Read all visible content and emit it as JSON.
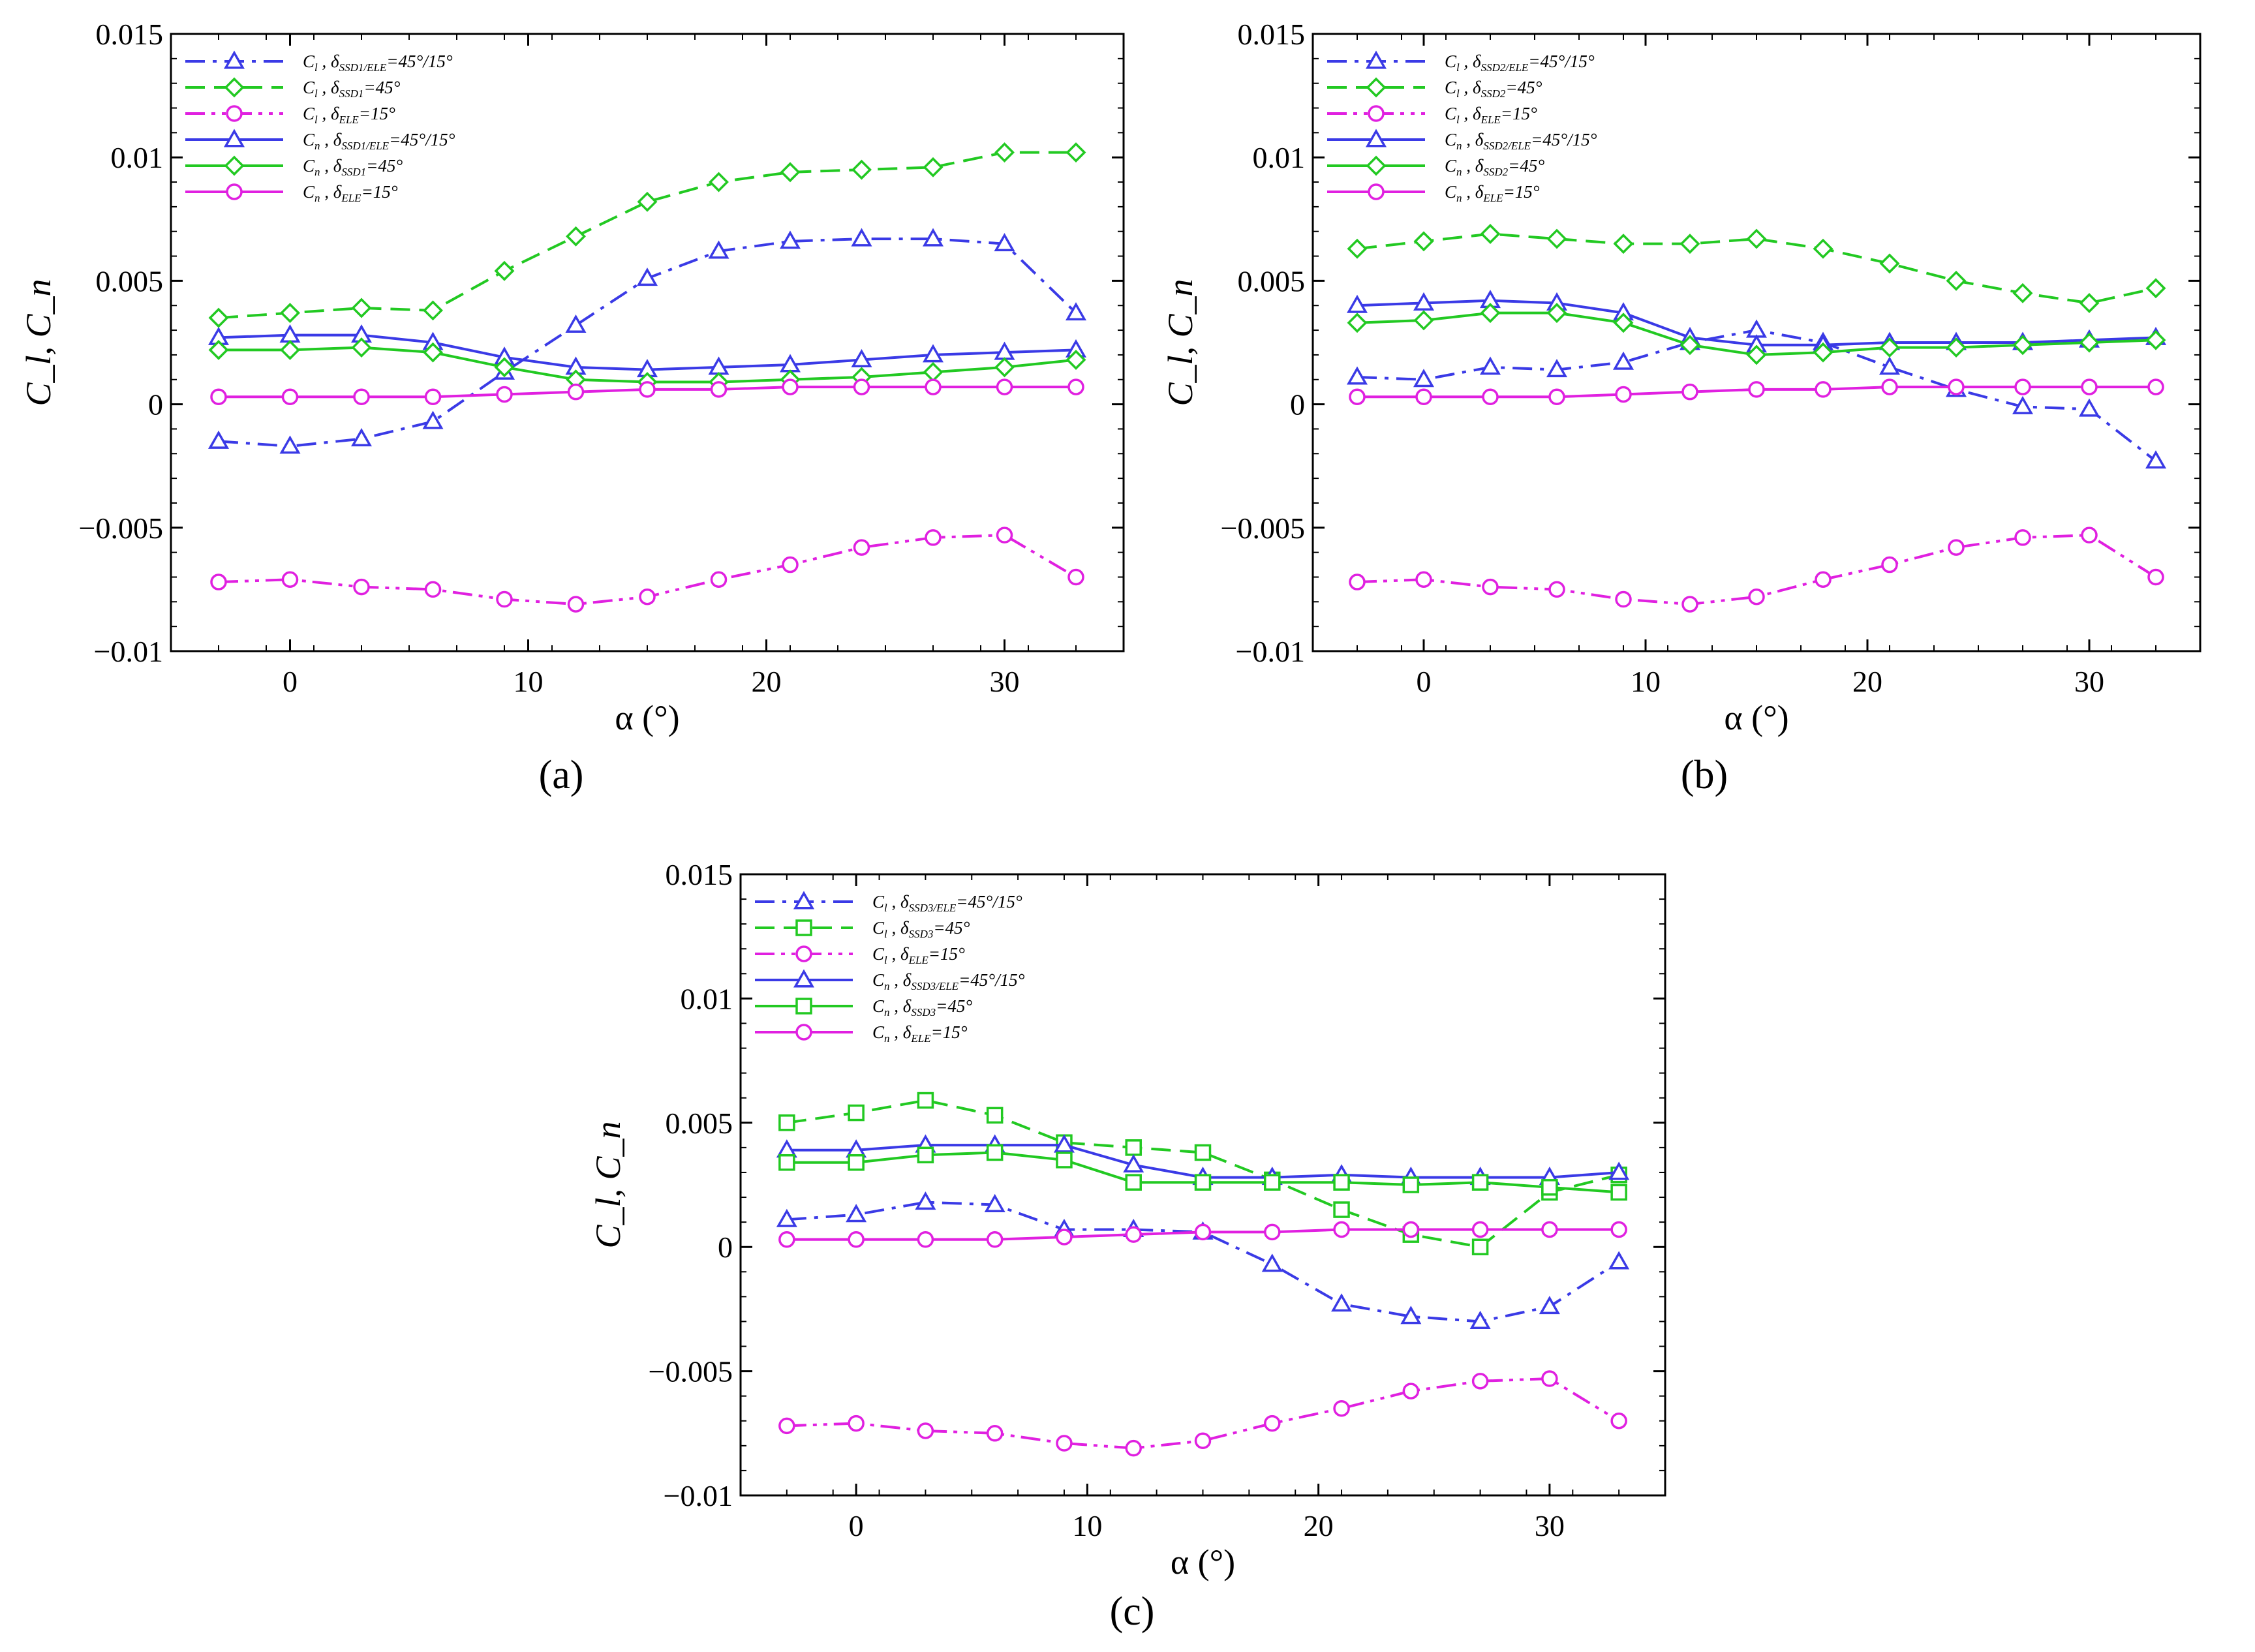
{
  "chart_data": [
    {
      "type": "line",
      "panel_label": "(a)",
      "subfigure": "a",
      "title": "",
      "xlabel": "α (°)",
      "ylabel": "C_l, C_n",
      "xlim": [
        -5,
        35
      ],
      "ylim": [
        -0.01,
        0.015
      ],
      "xticks": [
        0,
        10,
        20,
        30
      ],
      "xtick_labels": [
        "0",
        "10",
        "20",
        "30"
      ],
      "yticks": [
        -0.01,
        -0.005,
        0,
        0.005,
        0.01,
        0.015
      ],
      "ytick_labels": [
        "−0.01",
        "−0.005",
        "0",
        "0.005",
        "0.01",
        "0.015"
      ],
      "grid": false,
      "legend_position": "top-left",
      "x": [
        -3,
        0,
        3,
        6,
        9,
        12,
        15,
        18,
        21,
        24,
        27,
        30,
        33
      ],
      "series": [
        {
          "name": "C_l , δ_SSD1/ELE=45°/15°",
          "coef": "C",
          "coef_sub": "l",
          "sym": "δ",
          "sub": "SSD1/ELE",
          "eq": "=45°/15°",
          "color": "#3a3ae6",
          "dash": "dashdot",
          "marker": "triangle",
          "values": [
            -0.0015,
            -0.0017,
            -0.0014,
            -0.0007,
            0.0013,
            0.0032,
            0.0051,
            0.0062,
            0.0066,
            0.0067,
            0.0067,
            0.0065,
            0.0037
          ]
        },
        {
          "name": "C_l , δ_SSD1=45°",
          "coef": "C",
          "coef_sub": "l",
          "sym": "δ",
          "sub": "SSD1",
          "eq": "=45°",
          "color": "#22c922",
          "dash": "dashed",
          "marker": "diamond",
          "values": [
            0.0035,
            0.0037,
            0.0039,
            0.0038,
            0.0054,
            0.0068,
            0.0082,
            0.009,
            0.0094,
            0.0095,
            0.0096,
            0.0102,
            0.0102
          ]
        },
        {
          "name": "C_l , δ_ELE=15°",
          "coef": "C",
          "coef_sub": "l",
          "sym": "δ",
          "sub": "ELE",
          "eq": "=15°",
          "color": "#e020e0",
          "dash": "dashdotdot",
          "marker": "circle",
          "values": [
            -0.0072,
            -0.0071,
            -0.0074,
            -0.0075,
            -0.0079,
            -0.0081,
            -0.0078,
            -0.0071,
            -0.0065,
            -0.0058,
            -0.0054,
            -0.0053,
            -0.007
          ]
        },
        {
          "name": "C_n , δ_SSD1/ELE=45°/15°",
          "coef": "C",
          "coef_sub": "n",
          "sym": "δ",
          "sub": "SSD1/ELE",
          "eq": "=45°/15°",
          "color": "#3a3ae6",
          "dash": "solid",
          "marker": "triangle",
          "values": [
            0.0027,
            0.0028,
            0.0028,
            0.0025,
            0.0019,
            0.0015,
            0.0014,
            0.0015,
            0.0016,
            0.0018,
            0.002,
            0.0021,
            0.0022
          ]
        },
        {
          "name": "C_n , δ_SSD1=45°",
          "coef": "C",
          "coef_sub": "n",
          "sym": "δ",
          "sub": "SSD1",
          "eq": "=45°",
          "color": "#22c922",
          "dash": "solid",
          "marker": "diamond",
          "values": [
            0.0022,
            0.0022,
            0.0023,
            0.0021,
            0.0015,
            0.001,
            0.0009,
            0.0009,
            0.001,
            0.0011,
            0.0013,
            0.0015,
            0.0018
          ]
        },
        {
          "name": "C_n , δ_ELE=15°",
          "coef": "C",
          "coef_sub": "n",
          "sym": "δ",
          "sub": "ELE",
          "eq": "=15°",
          "color": "#e020e0",
          "dash": "solid",
          "marker": "circle",
          "values": [
            0.0003,
            0.0003,
            0.0003,
            0.0003,
            0.0004,
            0.0005,
            0.0006,
            0.0006,
            0.0007,
            0.0007,
            0.0007,
            0.0007,
            0.0007
          ]
        }
      ]
    },
    {
      "type": "line",
      "panel_label": "(b)",
      "subfigure": "b",
      "title": "",
      "xlabel": "α (°)",
      "ylabel": "C_l, C_n",
      "xlim": [
        -5,
        35
      ],
      "ylim": [
        -0.01,
        0.015
      ],
      "xticks": [
        0,
        10,
        20,
        30
      ],
      "xtick_labels": [
        "0",
        "10",
        "20",
        "30"
      ],
      "yticks": [
        -0.01,
        -0.005,
        0,
        0.005,
        0.01,
        0.015
      ],
      "ytick_labels": [
        "−0.01",
        "−0.005",
        "0",
        "0.005",
        "0.01",
        "0.015"
      ],
      "grid": false,
      "legend_position": "top-left",
      "x": [
        -3,
        0,
        3,
        6,
        9,
        12,
        15,
        18,
        21,
        24,
        27,
        30,
        33
      ],
      "series": [
        {
          "name": "C_l , δ_SSD2/ELE=45°/15°",
          "coef": "C",
          "coef_sub": "l",
          "sym": "δ",
          "sub": "SSD2/ELE",
          "eq": "=45°/15°",
          "color": "#3a3ae6",
          "dash": "dashdot",
          "marker": "triangle",
          "values": [
            0.0011,
            0.001,
            0.0015,
            0.0014,
            0.0017,
            0.0025,
            0.003,
            0.0025,
            0.0015,
            0.0006,
            -0.0001,
            -0.0002,
            -0.0023
          ]
        },
        {
          "name": "C_l , δ_SSD2=45°",
          "coef": "C",
          "coef_sub": "l",
          "sym": "δ",
          "sub": "SSD2",
          "eq": "=45°",
          "color": "#22c922",
          "dash": "dashed",
          "marker": "diamond",
          "values": [
            0.0063,
            0.0066,
            0.0069,
            0.0067,
            0.0065,
            0.0065,
            0.0067,
            0.0063,
            0.0057,
            0.005,
            0.0045,
            0.0041,
            0.0047
          ]
        },
        {
          "name": "C_l , δ_ELE=15°",
          "coef": "C",
          "coef_sub": "l",
          "sym": "δ",
          "sub": "ELE",
          "eq": "=15°",
          "color": "#e020e0",
          "dash": "dashdotdot",
          "marker": "circle",
          "values": [
            -0.0072,
            -0.0071,
            -0.0074,
            -0.0075,
            -0.0079,
            -0.0081,
            -0.0078,
            -0.0071,
            -0.0065,
            -0.0058,
            -0.0054,
            -0.0053,
            -0.007
          ]
        },
        {
          "name": "C_n , δ_SSD2/ELE=45°/15°",
          "coef": "C",
          "coef_sub": "n",
          "sym": "δ",
          "sub": "SSD2/ELE",
          "eq": "=45°/15°",
          "color": "#3a3ae6",
          "dash": "solid",
          "marker": "triangle",
          "values": [
            0.004,
            0.0041,
            0.0042,
            0.0041,
            0.0037,
            0.0027,
            0.0024,
            0.0024,
            0.0025,
            0.0025,
            0.0025,
            0.0026,
            0.0027
          ]
        },
        {
          "name": "C_n , δ_SSD2=45°",
          "coef": "C",
          "coef_sub": "n",
          "sym": "δ",
          "sub": "SSD2",
          "eq": "=45°",
          "color": "#22c922",
          "dash": "solid",
          "marker": "diamond",
          "values": [
            0.0033,
            0.0034,
            0.0037,
            0.0037,
            0.0033,
            0.0024,
            0.002,
            0.0021,
            0.0023,
            0.0023,
            0.0024,
            0.0025,
            0.0026
          ]
        },
        {
          "name": "C_n , δ_ELE=15°",
          "coef": "C",
          "coef_sub": "n",
          "sym": "δ",
          "sub": "ELE",
          "eq": "=15°",
          "color": "#e020e0",
          "dash": "solid",
          "marker": "circle",
          "values": [
            0.0003,
            0.0003,
            0.0003,
            0.0003,
            0.0004,
            0.0005,
            0.0006,
            0.0006,
            0.0007,
            0.0007,
            0.0007,
            0.0007,
            0.0007
          ]
        }
      ]
    },
    {
      "type": "line",
      "panel_label": "(c)",
      "subfigure": "c",
      "title": "",
      "xlabel": "α (°)",
      "ylabel": "C_l, C_n",
      "xlim": [
        -5,
        35
      ],
      "ylim": [
        -0.01,
        0.015
      ],
      "xticks": [
        0,
        10,
        20,
        30
      ],
      "xtick_labels": [
        "0",
        "10",
        "20",
        "30"
      ],
      "yticks": [
        -0.01,
        -0.005,
        0,
        0.005,
        0.01,
        0.015
      ],
      "ytick_labels": [
        "−0.01",
        "−0.005",
        "0",
        "0.005",
        "0.01",
        "0.015"
      ],
      "grid": false,
      "legend_position": "top-left",
      "x": [
        -3,
        0,
        3,
        6,
        9,
        12,
        15,
        18,
        21,
        24,
        27,
        30,
        33
      ],
      "series": [
        {
          "name": "C_l , δ_SSD3/ELE=45°/15°",
          "coef": "C",
          "coef_sub": "l",
          "sym": "δ",
          "sub": "SSD3/ELE",
          "eq": "=45°/15°",
          "color": "#3a3ae6",
          "dash": "dashdot",
          "marker": "triangle",
          "values": [
            0.0011,
            0.0013,
            0.0018,
            0.0017,
            0.0007,
            0.0007,
            0.0006,
            -0.0007,
            -0.0023,
            -0.0028,
            -0.003,
            -0.0024,
            -0.0006
          ]
        },
        {
          "name": "C_l , δ_SSD3=45°",
          "coef": "C",
          "coef_sub": "l",
          "sym": "δ",
          "sub": "SSD3",
          "eq": "=45°",
          "color": "#22c922",
          "dash": "dashed",
          "marker": "square",
          "values": [
            0.005,
            0.0054,
            0.0059,
            0.0053,
            0.0042,
            0.004,
            0.0038,
            0.0027,
            0.0015,
            0.0005,
            0.0,
            0.0022,
            0.0029
          ]
        },
        {
          "name": "C_l , δ_ELE=15°",
          "coef": "C",
          "coef_sub": "l",
          "sym": "δ",
          "sub": "ELE",
          "eq": "=15°",
          "color": "#e020e0",
          "dash": "dashdotdot",
          "marker": "circle",
          "values": [
            -0.0072,
            -0.0071,
            -0.0074,
            -0.0075,
            -0.0079,
            -0.0081,
            -0.0078,
            -0.0071,
            -0.0065,
            -0.0058,
            -0.0054,
            -0.0053,
            -0.007
          ]
        },
        {
          "name": "C_n , δ_SSD3/ELE=45°/15°",
          "coef": "C",
          "coef_sub": "n",
          "sym": "δ",
          "sub": "SSD3/ELE",
          "eq": "=45°/15°",
          "color": "#3a3ae6",
          "dash": "solid",
          "marker": "triangle",
          "values": [
            0.0039,
            0.0039,
            0.0041,
            0.0041,
            0.0041,
            0.0033,
            0.0028,
            0.0028,
            0.0029,
            0.0028,
            0.0028,
            0.0028,
            0.003
          ]
        },
        {
          "name": "C_n , δ_SSD3=45°",
          "coef": "C",
          "coef_sub": "n",
          "sym": "δ",
          "sub": "SSD3",
          "eq": "=45°",
          "color": "#22c922",
          "dash": "solid",
          "marker": "square",
          "values": [
            0.0034,
            0.0034,
            0.0037,
            0.0038,
            0.0035,
            0.0026,
            0.0026,
            0.0026,
            0.0026,
            0.0025,
            0.0026,
            0.0024,
            0.0022
          ]
        },
        {
          "name": "C_n , δ_ELE=15°",
          "coef": "C",
          "coef_sub": "n",
          "sym": "δ",
          "sub": "ELE",
          "eq": "=15°",
          "color": "#e020e0",
          "dash": "solid",
          "marker": "circle",
          "values": [
            0.0003,
            0.0003,
            0.0003,
            0.0003,
            0.0004,
            0.0005,
            0.0006,
            0.0006,
            0.0007,
            0.0007,
            0.0007,
            0.0007,
            0.0007
          ]
        }
      ]
    }
  ]
}
